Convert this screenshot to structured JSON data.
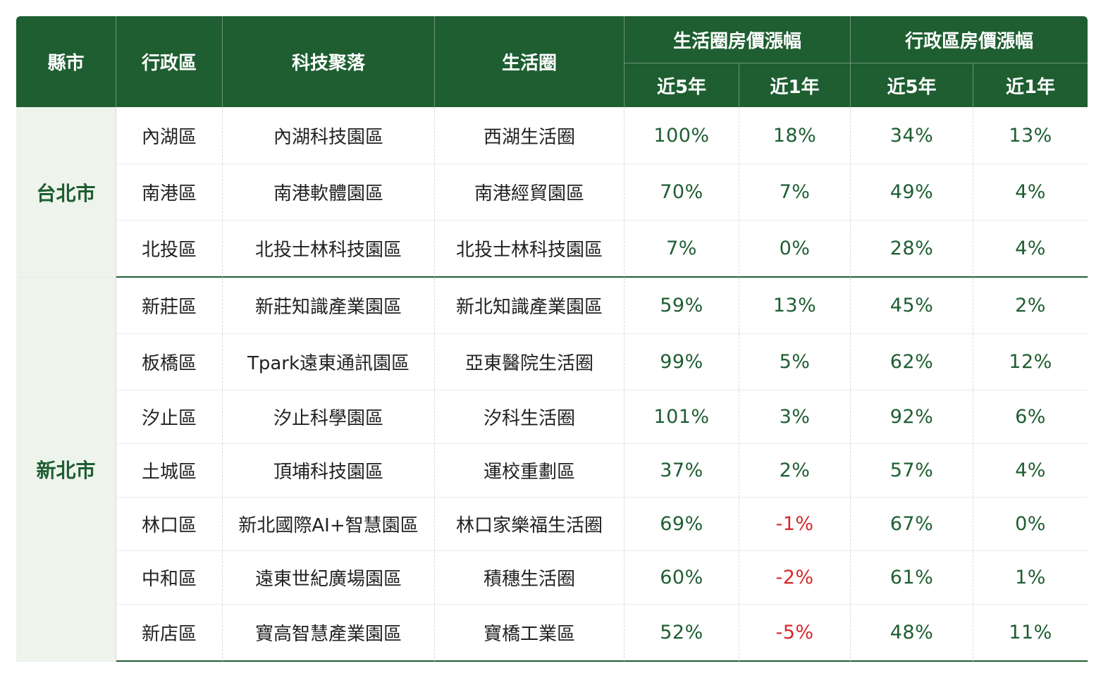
{
  "header": {
    "city": "縣市",
    "district": "行政區",
    "tech_cluster": "科技聚落",
    "life_circle": "生活圈",
    "life_group": "生活圈房價漲幅",
    "district_group": "行政區房價漲幅",
    "sub_5y": "近5年",
    "sub_1y": "近1年"
  },
  "groups": [
    {
      "city": "台北市",
      "rows": [
        {
          "district": "內湖區",
          "tech": "內湖科技園區",
          "life": "西湖生活圈",
          "life5": "100%",
          "life1": "18%",
          "dist5": "34%",
          "dist1": "13%"
        },
        {
          "district": "南港區",
          "tech": "南港軟體園區",
          "life": "南港經貿園區",
          "life5": "70%",
          "life1": "7%",
          "dist5": "49%",
          "dist1": "4%"
        },
        {
          "district": "北投區",
          "tech": "北投士林科技園區",
          "life": "北投士林科技園區",
          "life5": "7%",
          "life1": "0%",
          "dist5": "28%",
          "dist1": "4%"
        }
      ]
    },
    {
      "city": "新北市",
      "rows": [
        {
          "district": "新莊區",
          "tech": "新莊知識產業園區",
          "life": "新北知識產業園區",
          "life5": "59%",
          "life1": "13%",
          "dist5": "45%",
          "dist1": "2%"
        },
        {
          "district": "板橋區",
          "tech": "Tpark遠東通訊園區",
          "life": "亞東醫院生活圈",
          "life5": "99%",
          "life1": "5%",
          "dist5": "62%",
          "dist1": "12%"
        },
        {
          "district": "汐止區",
          "tech": "汐止科學園區",
          "life": "汐科生活圈",
          "life5": "101%",
          "life1": "3%",
          "dist5": "92%",
          "dist1": "6%"
        },
        {
          "district": "土城區",
          "tech": "頂埔科技園區",
          "life": "運校重劃區",
          "life5": "37%",
          "life1": "2%",
          "dist5": "57%",
          "dist1": "4%"
        },
        {
          "district": "林口區",
          "tech": "新北國際AI+智慧園區",
          "life": "林口家樂福生活圈",
          "life5": "69%",
          "life1": "-1%",
          "dist5": "67%",
          "dist1": "0%"
        },
        {
          "district": "中和區",
          "tech": "遠東世紀廣場園區",
          "life": "積穗生活圈",
          "life5": "60%",
          "life1": "-2%",
          "dist5": "61%",
          "dist1": "1%"
        },
        {
          "district": "新店區",
          "tech": "寶高智慧產業園區",
          "life": "寶橋工業區",
          "life5": "52%",
          "life1": "-5%",
          "dist5": "48%",
          "dist1": "11%"
        }
      ]
    }
  ],
  "colors": {
    "header_bg": "#1e5e31",
    "positive": "#1e5e31",
    "negative": "#d6282b",
    "city_bg": "#eef3ec"
  }
}
